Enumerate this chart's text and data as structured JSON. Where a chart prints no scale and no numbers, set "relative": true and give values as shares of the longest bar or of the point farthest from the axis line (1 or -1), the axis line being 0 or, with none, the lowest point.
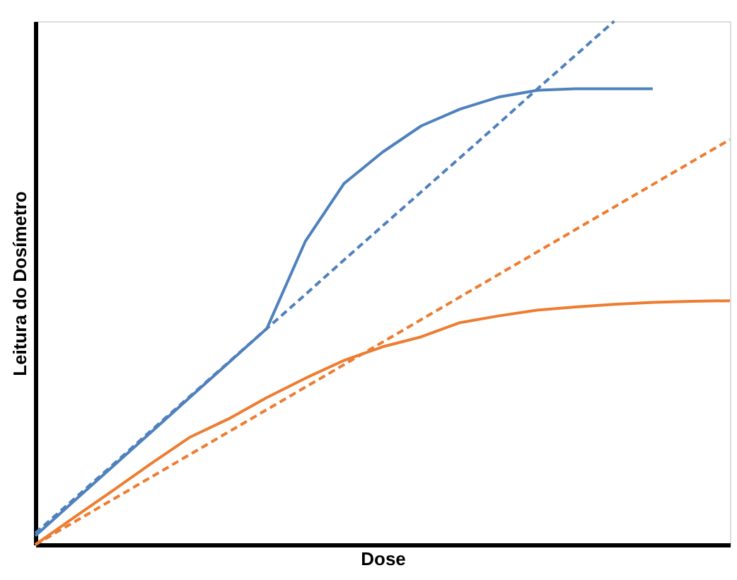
{
  "chart_data": {
    "type": "line",
    "relative": true,
    "xlabel": "Dose",
    "ylabel": "Leitura do Dosímetro",
    "tick_labels": false,
    "grid": false,
    "marker": "none",
    "categories": [
      null,
      null,
      null,
      null,
      null,
      null,
      null,
      null,
      null,
      null,
      null,
      null,
      null,
      null,
      null,
      null,
      null,
      null,
      null
    ],
    "series": [
      {
        "color": "#4f81bd",
        "line_style": "dashed",
        "values": [
          0.022,
          0.087,
          0.152,
          0.218,
          0.283,
          0.348,
          0.413,
          0.478,
          0.544,
          0.609,
          0.674,
          0.739,
          0.804,
          0.87,
          0.935,
          1.0,
          null,
          null,
          null
        ]
      },
      {
        "color": "#4f81bd",
        "line_style": "solid",
        "values": [
          0.017,
          0.083,
          0.149,
          0.215,
          0.281,
          0.347,
          0.413,
          0.58,
          0.69,
          0.75,
          0.8,
          0.832,
          0.855,
          0.868,
          0.871,
          0.871,
          0.871,
          null,
          null
        ]
      },
      {
        "color": "#ed7d31",
        "line_style": "dashed",
        "values": [
          0,
          0.043,
          0.086,
          0.129,
          0.172,
          0.215,
          0.258,
          0.301,
          0.344,
          0.387,
          0.43,
          0.473,
          0.516,
          0.559,
          0.602,
          0.645,
          0.688,
          0.731,
          0.774
        ]
      },
      {
        "color": "#ed7d31",
        "line_style": "solid",
        "values": [
          0,
          0.052,
          0.103,
          0.155,
          0.205,
          0.24,
          0.281,
          0.318,
          0.352,
          0.378,
          0.397,
          0.424,
          0.437,
          0.448,
          0.454,
          0.459,
          0.463,
          0.465,
          0.466
        ]
      }
    ]
  }
}
